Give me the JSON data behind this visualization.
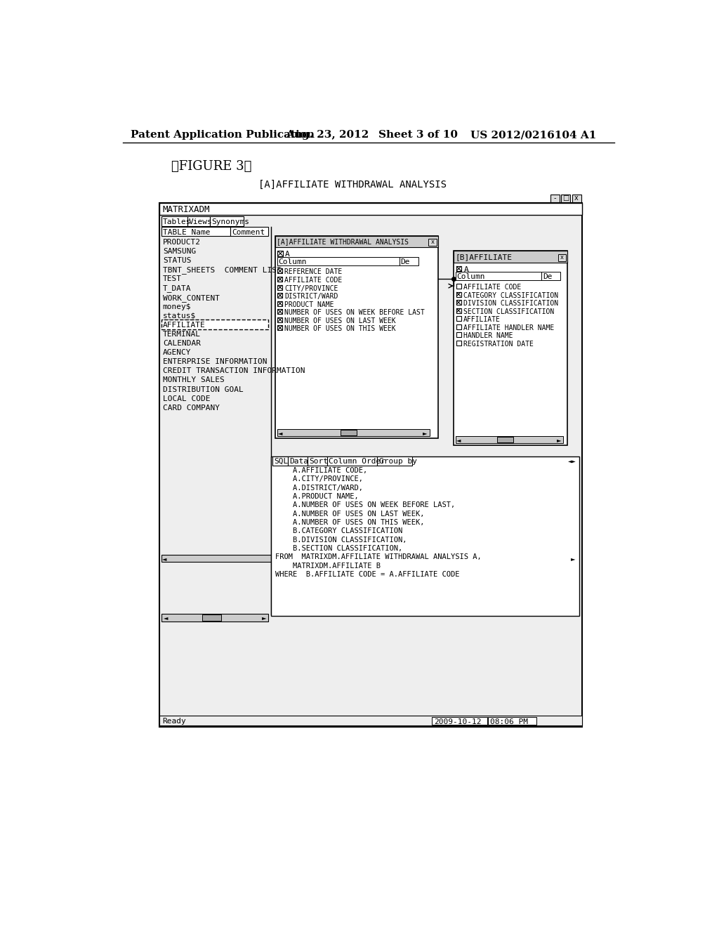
{
  "bg_color": "#ffffff",
  "header_text": "Patent Application Publication",
  "header_date": "Aug. 23, 2012",
  "header_sheet": "Sheet 3 of 10",
  "header_patent": "US 2012/0216104 A1",
  "figure_label": "《FIGURE 3》",
  "subtitle": "[A]AFFILIATE WITHDRAWAL ANALYSIS",
  "main_title_bar": "MATRIXADM",
  "tabs": [
    "Tables",
    "Views",
    "Synonyms"
  ],
  "col_headers": [
    "TABLE Name",
    "Comment"
  ],
  "table_list": [
    "PRODUCT2",
    "SAMSUNG",
    "STATUS",
    "TBNT_SHEETS  COMMENT LIST",
    "TEST",
    "T_DATA",
    "WORK_CONTENT",
    "money$",
    "status$",
    "AFFILIATE",
    "TERMINAL",
    "CALENDAR",
    "AGENCY",
    "ENTERPRISE INFORMATION",
    "CREDIT TRANSACTION INFORMATION",
    "MONTHLY SALES",
    "DISTRIBUTION GOAL",
    "LOCAL CODE",
    "CARD COMPANY"
  ],
  "window_a_title": "[A]AFFILIATE WITHDRAWAL ANALYSIS",
  "window_a_checkbox": "A",
  "window_a_col_headers": [
    "Column",
    "De"
  ],
  "window_a_items": [
    {
      "checked": true,
      "text": "REFERENCE DATE"
    },
    {
      "checked": true,
      "text": "AFFILIATE CODE"
    },
    {
      "checked": true,
      "text": "CITY/PROVINCE"
    },
    {
      "checked": true,
      "text": "DISTRICT/WARD"
    },
    {
      "checked": true,
      "text": "PRODUCT NAME"
    },
    {
      "checked": true,
      "text": "NUMBER OF USES ON WEEK BEFORE LAST"
    },
    {
      "checked": true,
      "text": "NUMBER OF USES ON LAST WEEK"
    },
    {
      "checked": true,
      "text": "NUMBER OF USES ON THIS WEEK"
    }
  ],
  "window_b_title": "[B]AFFILIATE",
  "window_b_checkbox": "A",
  "window_b_col_headers": [
    "Column",
    "De"
  ],
  "window_b_items": [
    {
      "checked": false,
      "text": "AFFILIATE CODE"
    },
    {
      "checked": true,
      "text": "CATEGORY CLASSIFICATION"
    },
    {
      "checked": true,
      "text": "DIVISION CLASSIFICATION"
    },
    {
      "checked": true,
      "text": "SECTION CLASSIFICATION"
    },
    {
      "checked": false,
      "text": "AFFILIATE"
    },
    {
      "checked": false,
      "text": "AFFILIATE HANDLER NAME"
    },
    {
      "checked": false,
      "text": "HANDLER NAME"
    },
    {
      "checked": false,
      "text": "REGISTRATION DATE"
    }
  ],
  "sql_tabs": [
    "SQL",
    "Data",
    "Sort",
    "Column Order",
    "Group by"
  ],
  "sql_text": [
    "    A.AFFILIATE CODE,",
    "    A.CITY/PROVINCE,",
    "    A.DISTRICT/WARD,",
    "    A.PRODUCT NAME,",
    "    A.NUMBER OF USES ON WEEK BEFORE LAST,",
    "    A.NUMBER OF USES ON LAST WEEK,",
    "    A.NUMBER OF USES ON THIS WEEK,",
    "    B.CATEGORY CLASSIFICATION",
    "    B.DIVISION CLASSIFICATION,",
    "    B.SECTION CLASSIFICATION,",
    "FROM  MATRIXDM.AFFILIATE WITHDRAWAL ANALYSIS A,",
    "    MATRIXDM.AFFILIATE B",
    "WHERE  B.AFFILIATE CODE = A.AFFILIATE CODE"
  ],
  "status_bar_left": "Ready",
  "status_bar_date": "2009-10-12",
  "status_bar_time": "08:06 PM"
}
